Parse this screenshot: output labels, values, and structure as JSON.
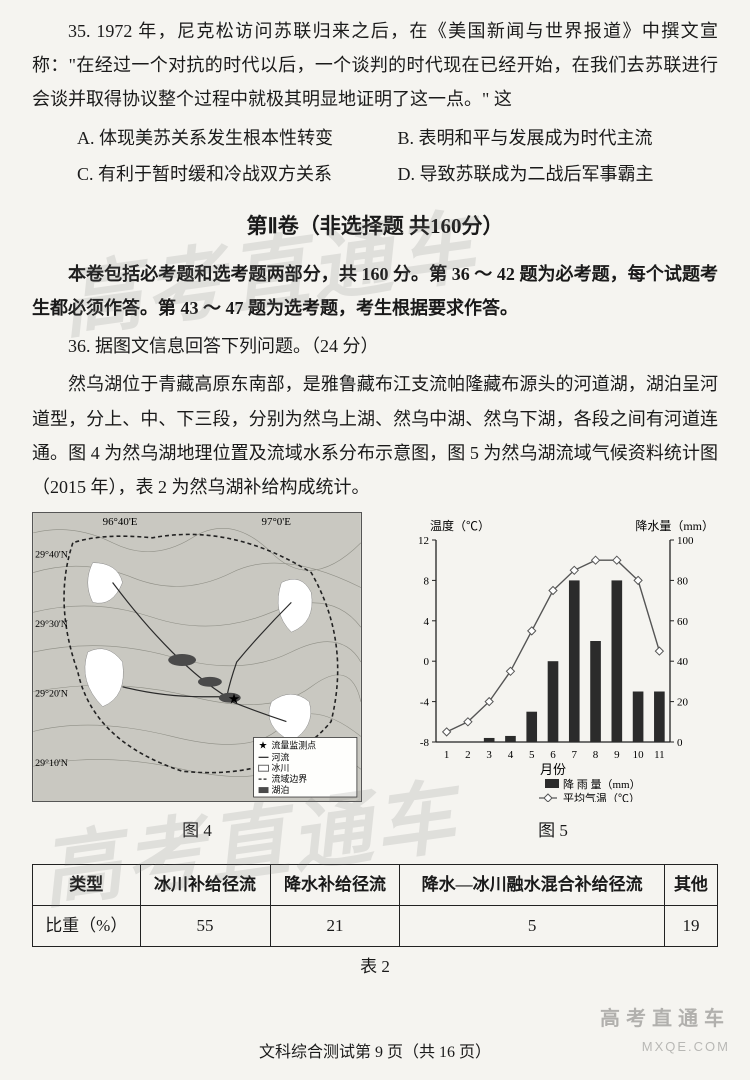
{
  "q35": {
    "stem1": "35. 1972 年，尼克松访问苏联归来之后，在《美国新闻与世界报道》中撰文宣称：\"在经过一个对抗的时代以后，一个谈判的时代现在已经开始，在我们去苏联进行会谈并取得协议整个过程中就极其明显地证明了这一点。\" 这",
    "A": "A. 体现美苏关系发生根本性转变",
    "B": "B. 表明和平与发展成为时代主流",
    "C": "C. 有利于暂时缓和冷战双方关系",
    "D": "D. 导致苏联成为二战后军事霸主"
  },
  "section2_title": "第Ⅱ卷（非选择题 共160分）",
  "instr1": "本卷包括必考题和选考题两部分，共 160 分。第 36 ～ 42 题为必考题，每个试题考生都必须作答。第 43 ～ 47 题为选考题，考生根据要求作答。",
  "q36": {
    "head": "36. 据图文信息回答下列问题。（24 分）",
    "p1": "然乌湖位于青藏高原东南部，是雅鲁藏布江支流帕隆藏布源头的河道湖，湖泊呈河道型，分上、中、下三段，分别为然乌上湖、然乌中湖、然乌下湖，各段之间有河道连通。图 4 为然乌湖地理位置及流域水系分布示意图，图 5 为然乌湖流域气候资料统计图（2015 年），表 2 为然乌湖补给构成统计。"
  },
  "map": {
    "lon_top_left": "96°40'E",
    "lon_top_right": "97°0'E",
    "lat_labels": [
      "29°40'N",
      "29°30'N",
      "29°20'N",
      "29°10'N"
    ],
    "legend": {
      "star": "流量监测点",
      "river": "河流",
      "glacier": "冰川",
      "boundary": "流域边界",
      "lake": "湖泊"
    },
    "caption": "图 4",
    "colors": {
      "terrain": "#bdbdb5",
      "river": "#3a3a3a",
      "glacier": "#ffffff",
      "lake": "#5b5b5b",
      "border": "#333333"
    }
  },
  "chart": {
    "caption": "图 5",
    "y1_label": "温度（℃）",
    "y2_label": "降水量（mm）",
    "x_label": "月份",
    "legend_bar": "降 雨 量（mm）",
    "legend_line": "平均气温（℃）",
    "months": [
      1,
      2,
      3,
      4,
      5,
      6,
      7,
      8,
      9,
      10,
      11
    ],
    "precip_mm": [
      0,
      0,
      2,
      3,
      15,
      40,
      80,
      50,
      80,
      25,
      25
    ],
    "temp_c": [
      -7,
      -6,
      -4,
      -1,
      3,
      7,
      9,
      10,
      10,
      8,
      1
    ],
    "y1_lim": [
      -8,
      12
    ],
    "y1_ticks": [
      -8,
      -4,
      0,
      4,
      8,
      12
    ],
    "y2_lim": [
      0,
      100
    ],
    "y2_ticks": [
      0,
      20,
      40,
      60,
      80,
      100
    ],
    "colors": {
      "bar": "#2b2b2b",
      "line": "#555555",
      "axis": "#222222",
      "bg": "#f5f4f0"
    }
  },
  "table": {
    "header": [
      "类型",
      "冰川补给径流",
      "降水补给径流",
      "降水—冰川融水混合补给径流",
      "其他"
    ],
    "row_label": "比重（%）",
    "values": [
      55,
      21,
      5,
      19
    ],
    "caption": "表 2"
  },
  "footer": "文科综合测试第 9 页（共 16 页）",
  "watermark_big": "高考直通车",
  "watermark_corner": "高考直通车",
  "watermark_small": "MXQE.COM"
}
